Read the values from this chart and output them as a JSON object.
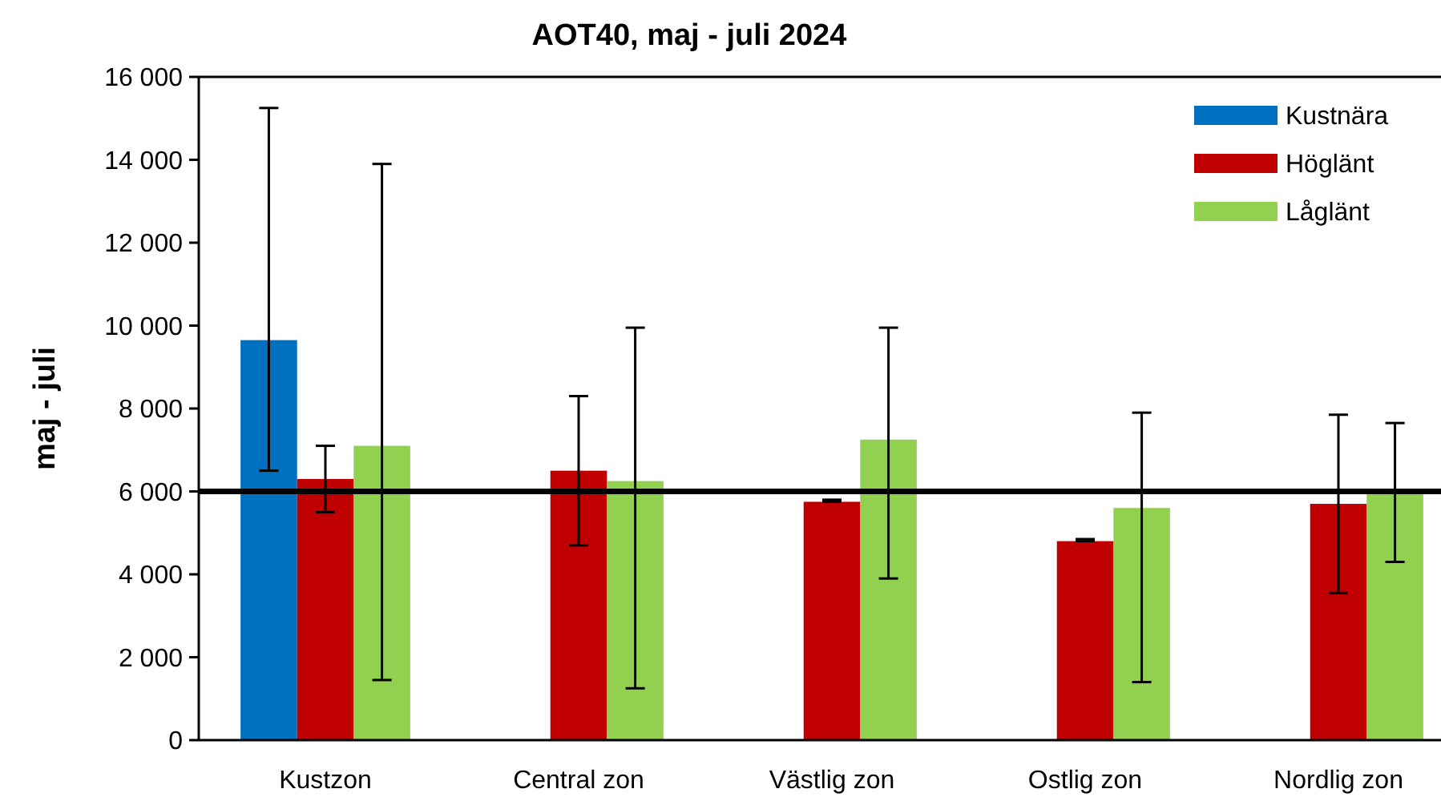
{
  "chart_data": {
    "type": "bar",
    "title": "AOT40, maj - juli 2024",
    "ylabel": "maj - juli",
    "categories": [
      "Kustzon",
      "Central zon",
      "Västlig zon",
      "Ostlig zon",
      "Nordlig zon"
    ],
    "series": [
      {
        "name": "Kustnära",
        "color": "#0070c0",
        "values": [
          9650,
          0,
          0,
          0,
          0
        ],
        "errors": [
          [
            6500,
            15250
          ],
          null,
          null,
          null,
          null
        ]
      },
      {
        "name": "Höglänt",
        "color": "#c00000",
        "values": [
          6300,
          6500,
          5750,
          4800,
          5700
        ],
        "errors": [
          [
            5500,
            7100
          ],
          [
            4700,
            8300
          ],
          [
            5750,
            5800
          ],
          [
            4800,
            4850
          ],
          [
            3550,
            7850
          ]
        ]
      },
      {
        "name": "Låglänt",
        "color": "#92d050",
        "values": [
          7100,
          6250,
          7250,
          5600,
          5950
        ],
        "errors": [
          [
            1450,
            13900
          ],
          [
            1250,
            9950
          ],
          [
            3900,
            9950
          ],
          [
            1400,
            7900
          ],
          [
            4300,
            7650
          ]
        ]
      }
    ],
    "ylim": [
      0,
      16000
    ],
    "yticks": [
      {
        "value": 0,
        "label": "0"
      },
      {
        "value": 2000,
        "label": "2 000"
      },
      {
        "value": 4000,
        "label": "4 000"
      },
      {
        "value": 6000,
        "label": "6 000"
      },
      {
        "value": 8000,
        "label": "8 000"
      },
      {
        "value": 10000,
        "label": "10 000"
      },
      {
        "value": 12000,
        "label": "12 000"
      },
      {
        "value": 14000,
        "label": "14 000"
      },
      {
        "value": 16000,
        "label": "16 000"
      }
    ],
    "ref_lines": [
      {
        "axis": "y",
        "value": 6000,
        "color": "#000000"
      }
    ],
    "legend": "top right"
  }
}
